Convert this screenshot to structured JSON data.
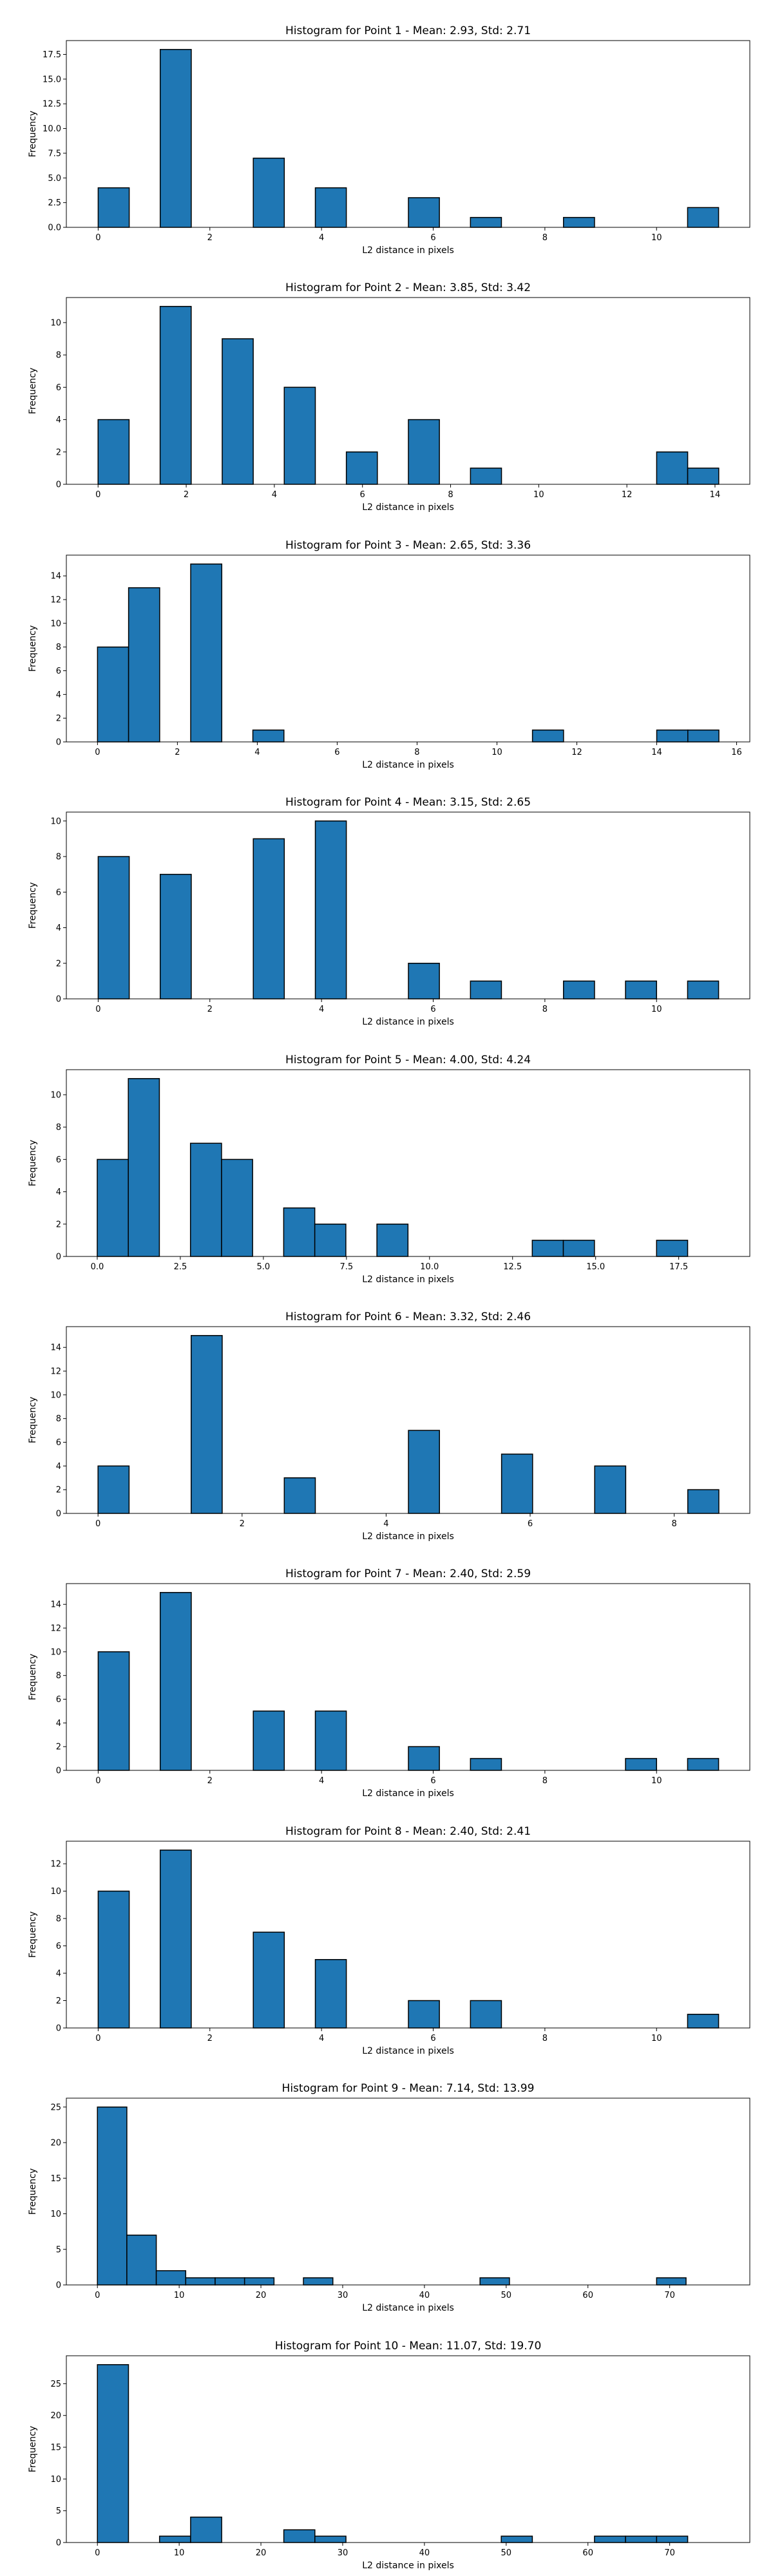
{
  "chart_data": [
    {
      "type": "bar",
      "title": "Histogram for Point 1 - Mean: 2.93, Std: 2.71",
      "xlabel": "L2 distance in pixels",
      "ylabel": "Frequency",
      "xlim": [
        -0.57,
        11.67
      ],
      "ylim": [
        0,
        18.9
      ],
      "xticks": [
        0,
        2,
        4,
        6,
        8,
        10
      ],
      "xtick_labels": [
        "0",
        "2",
        "4",
        "6",
        "8",
        "10"
      ],
      "yticks": [
        0,
        2.5,
        5,
        7.5,
        10,
        12.5,
        15,
        17.5
      ],
      "ytick_labels": [
        "0.0",
        "2.5",
        "5.0",
        "7.5",
        "10.0",
        "12.5",
        "15.0",
        "17.5"
      ],
      "bin_edges": [
        0,
        0.556,
        1.111,
        1.667,
        2.222,
        2.778,
        3.333,
        3.889,
        4.444,
        5.0,
        5.556,
        6.111,
        6.667,
        7.222,
        7.778,
        8.333,
        8.889,
        9.444,
        10.0,
        10.556,
        11.111
      ],
      "counts": [
        4,
        0,
        18,
        0,
        0,
        7,
        0,
        4,
        0,
        0,
        3,
        0,
        1,
        0,
        0,
        1,
        0,
        0,
        0,
        2
      ],
      "grid": false
    },
    {
      "type": "bar",
      "title": "Histogram for Point 2 - Mean: 3.85, Std: 3.42",
      "xlabel": "L2 distance in pixels",
      "ylabel": "Frequency",
      "xlim": [
        -0.72,
        14.79
      ],
      "ylim": [
        0,
        11.55
      ],
      "xticks": [
        0,
        2,
        4,
        6,
        8,
        10,
        12,
        14
      ],
      "xtick_labels": [
        "0",
        "2",
        "4",
        "6",
        "8",
        "10",
        "12",
        "14"
      ],
      "yticks": [
        0,
        2,
        4,
        6,
        8,
        10
      ],
      "ytick_labels": [
        "0",
        "2",
        "4",
        "6",
        "8",
        "10"
      ],
      "bin_edges": [
        0,
        0.704,
        1.408,
        2.113,
        2.817,
        3.521,
        4.225,
        4.93,
        5.634,
        6.338,
        7.042,
        7.746,
        8.451,
        9.155,
        9.859,
        10.563,
        11.268,
        11.972,
        12.676,
        13.38,
        14.085
      ],
      "counts": [
        4,
        0,
        11,
        0,
        9,
        0,
        6,
        0,
        2,
        0,
        4,
        0,
        1,
        0,
        0,
        0,
        0,
        0,
        2,
        1
      ],
      "grid": false
    },
    {
      "type": "bar",
      "title": "Histogram for Point 3 - Mean: 2.65, Std: 3.36",
      "xlabel": "L2 distance in pixels",
      "ylabel": "Frequency",
      "xlim": [
        -0.78,
        16.33
      ],
      "ylim": [
        0,
        15.75
      ],
      "xticks": [
        0,
        2,
        4,
        6,
        8,
        10,
        12,
        14,
        16
      ],
      "xtick_labels": [
        "0",
        "2",
        "4",
        "6",
        "8",
        "10",
        "12",
        "14",
        "16"
      ],
      "yticks": [
        0,
        2,
        4,
        6,
        8,
        10,
        12,
        14
      ],
      "ytick_labels": [
        "0",
        "2",
        "4",
        "6",
        "8",
        "10",
        "12",
        "14"
      ],
      "bin_edges": [
        0,
        0.778,
        1.556,
        2.333,
        3.111,
        3.889,
        4.667,
        5.444,
        6.222,
        7.0,
        7.778,
        8.556,
        9.333,
        10.111,
        10.889,
        11.667,
        12.444,
        13.222,
        14.0,
        14.778,
        15.556
      ],
      "counts": [
        8,
        13,
        0,
        15,
        0,
        1,
        0,
        0,
        0,
        0,
        0,
        0,
        0,
        0,
        1,
        0,
        0,
        0,
        1,
        1
      ],
      "grid": false
    },
    {
      "type": "bar",
      "title": "Histogram for Point 4 - Mean: 3.15, Std: 2.65",
      "xlabel": "L2 distance in pixels",
      "ylabel": "Frequency",
      "xlim": [
        -0.57,
        11.67
      ],
      "ylim": [
        0,
        10.5
      ],
      "xticks": [
        0,
        2,
        4,
        6,
        8,
        10
      ],
      "xtick_labels": [
        "0",
        "2",
        "4",
        "6",
        "8",
        "10"
      ],
      "yticks": [
        0,
        2,
        4,
        6,
        8,
        10
      ],
      "ytick_labels": [
        "0",
        "2",
        "4",
        "6",
        "8",
        "10"
      ],
      "bin_edges": [
        0,
        0.556,
        1.111,
        1.667,
        2.222,
        2.778,
        3.333,
        3.889,
        4.444,
        5.0,
        5.556,
        6.111,
        6.667,
        7.222,
        7.778,
        8.333,
        8.889,
        9.444,
        10.0,
        10.556,
        11.111
      ],
      "counts": [
        8,
        0,
        7,
        0,
        0,
        9,
        0,
        10,
        0,
        0,
        2,
        0,
        1,
        0,
        0,
        1,
        0,
        1,
        0,
        1
      ],
      "grid": false
    },
    {
      "type": "bar",
      "title": "Histogram for Point 5 - Mean: 4.00, Std: 4.24",
      "xlabel": "L2 distance in pixels",
      "ylabel": "Frequency",
      "xlim": [
        -0.93,
        19.64
      ],
      "ylim": [
        0,
        11.55
      ],
      "xticks": [
        0,
        2.5,
        5,
        7.5,
        10,
        12.5,
        15,
        17.5
      ],
      "xtick_labels": [
        "0.0",
        "2.5",
        "5.0",
        "7.5",
        "10.0",
        "12.5",
        "15.0",
        "17.5"
      ],
      "yticks": [
        0,
        2,
        4,
        6,
        8,
        10
      ],
      "ytick_labels": [
        "0",
        "2",
        "4",
        "6",
        "8",
        "10"
      ],
      "bin_edges": [
        0,
        0.935,
        1.87,
        2.806,
        3.741,
        4.676,
        5.611,
        6.547,
        7.482,
        8.417,
        9.352,
        10.287,
        11.223,
        12.158,
        13.093,
        14.028,
        14.964,
        15.899,
        16.834,
        17.769,
        18.705
      ],
      "counts": [
        6,
        11,
        0,
        7,
        6,
        0,
        3,
        2,
        0,
        2,
        0,
        0,
        0,
        0,
        1,
        1,
        0,
        0,
        1,
        0
      ],
      "grid": false
    },
    {
      "type": "bar",
      "title": "Histogram for Point 6 - Mean: 3.32, Std: 2.46",
      "xlabel": "L2 distance in pixels",
      "ylabel": "Frequency",
      "xlim": [
        -0.44,
        9.05
      ],
      "ylim": [
        0,
        15.75
      ],
      "xticks": [
        0,
        2,
        4,
        6,
        8
      ],
      "xtick_labels": [
        "0",
        "2",
        "4",
        "6",
        "8"
      ],
      "yticks": [
        0,
        2,
        4,
        6,
        8,
        10,
        12,
        14
      ],
      "ytick_labels": [
        "0",
        "2",
        "4",
        "6",
        "8",
        "10",
        "12",
        "14"
      ],
      "bin_edges": [
        0,
        0.431,
        0.862,
        1.293,
        1.724,
        2.155,
        2.586,
        3.017,
        3.448,
        3.879,
        4.31,
        4.741,
        5.172,
        5.603,
        6.034,
        6.465,
        6.896,
        7.327,
        7.758,
        8.189,
        8.62
      ],
      "counts": [
        4,
        0,
        0,
        15,
        0,
        0,
        3,
        0,
        0,
        0,
        7,
        0,
        0,
        5,
        0,
        0,
        4,
        0,
        0,
        2
      ],
      "grid": false
    },
    {
      "type": "bar",
      "title": "Histogram for Point 7 - Mean: 2.40, Std: 2.59",
      "xlabel": "L2 distance in pixels",
      "ylabel": "Frequency",
      "xlim": [
        -0.57,
        11.67
      ],
      "ylim": [
        0,
        15.75
      ],
      "xticks": [
        0,
        2,
        4,
        6,
        8,
        10
      ],
      "xtick_labels": [
        "0",
        "2",
        "4",
        "6",
        "8",
        "10"
      ],
      "yticks": [
        0,
        2,
        4,
        6,
        8,
        10,
        12,
        14
      ],
      "ytick_labels": [
        "0",
        "2",
        "4",
        "6",
        "8",
        "10",
        "12",
        "14"
      ],
      "bin_edges": [
        0,
        0.556,
        1.111,
        1.667,
        2.222,
        2.778,
        3.333,
        3.889,
        4.444,
        5.0,
        5.556,
        6.111,
        6.667,
        7.222,
        7.778,
        8.333,
        8.889,
        9.444,
        10.0,
        10.556,
        11.111
      ],
      "counts": [
        10,
        0,
        15,
        0,
        0,
        5,
        0,
        5,
        0,
        0,
        2,
        0,
        1,
        0,
        0,
        0,
        0,
        1,
        0,
        1
      ],
      "grid": false
    },
    {
      "type": "bar",
      "title": "Histogram for Point 8 - Mean: 2.40, Std: 2.41",
      "xlabel": "L2 distance in pixels",
      "ylabel": "Frequency",
      "xlim": [
        -0.57,
        11.67
      ],
      "ylim": [
        0,
        13.65
      ],
      "xticks": [
        0,
        2,
        4,
        6,
        8,
        10
      ],
      "xtick_labels": [
        "0",
        "2",
        "4",
        "6",
        "8",
        "10"
      ],
      "yticks": [
        0,
        2,
        4,
        6,
        8,
        10,
        12
      ],
      "ytick_labels": [
        "0",
        "2",
        "4",
        "6",
        "8",
        "10",
        "12"
      ],
      "bin_edges": [
        0,
        0.556,
        1.111,
        1.667,
        2.222,
        2.778,
        3.333,
        3.889,
        4.444,
        5.0,
        5.556,
        6.111,
        6.667,
        7.222,
        7.778,
        8.333,
        8.889,
        9.444,
        10.0,
        10.556,
        11.111
      ],
      "counts": [
        10,
        0,
        13,
        0,
        0,
        7,
        0,
        5,
        0,
        0,
        2,
        0,
        2,
        0,
        0,
        0,
        0,
        0,
        0,
        1
      ],
      "grid": false
    },
    {
      "type": "bar",
      "title": "Histogram for Point 9 - Mean: 7.14, Std: 13.99",
      "xlabel": "L2 distance in pixels",
      "ylabel": "Frequency",
      "xlim": [
        -3.8,
        79.8
      ],
      "ylim": [
        0,
        26.25
      ],
      "xticks": [
        0,
        10,
        20,
        30,
        40,
        50,
        60,
        70
      ],
      "xtick_labels": [
        "0",
        "10",
        "20",
        "30",
        "40",
        "50",
        "60",
        "70"
      ],
      "yticks": [
        0,
        5,
        10,
        15,
        20,
        25
      ],
      "ytick_labels": [
        "0",
        "5",
        "10",
        "15",
        "20",
        "25"
      ],
      "bin_edges": [
        0,
        3.6,
        7.2,
        10.8,
        14.4,
        18.0,
        21.6,
        25.2,
        28.8,
        32.4,
        36.0,
        39.6,
        43.2,
        46.8,
        50.4,
        54.0,
        57.6,
        61.2,
        64.8,
        68.4,
        72.0
      ],
      "counts": [
        25,
        7,
        2,
        1,
        1,
        1,
        0,
        1,
        0,
        0,
        0,
        0,
        0,
        1,
        0,
        0,
        0,
        0,
        0,
        1
      ],
      "grid": false
    },
    {
      "type": "bar",
      "title": "Histogram for Point 10 - Mean: 11.07, Std: 19.70",
      "xlabel": "L2 distance in pixels",
      "ylabel": "Frequency",
      "xlim": [
        -3.8,
        79.8
      ],
      "ylim": [
        0,
        29.4
      ],
      "xticks": [
        0,
        10,
        20,
        30,
        40,
        50,
        60,
        70
      ],
      "xtick_labels": [
        "0",
        "10",
        "20",
        "30",
        "40",
        "50",
        "60",
        "70"
      ],
      "yticks": [
        0,
        5,
        10,
        15,
        20,
        25
      ],
      "ytick_labels": [
        "0",
        "5",
        "10",
        "15",
        "20",
        "25"
      ],
      "bin_edges": [
        0,
        3.8,
        7.6,
        11.4,
        15.2,
        19.0,
        22.8,
        26.6,
        30.4,
        34.2,
        38.0,
        41.8,
        45.6,
        49.4,
        53.2,
        57.0,
        60.8,
        64.6,
        68.4,
        72.2,
        76.0
      ],
      "counts": [
        28,
        0,
        1,
        4,
        0,
        0,
        2,
        1,
        0,
        0,
        0,
        0,
        0,
        1,
        0,
        0,
        1,
        1,
        1,
        0
      ],
      "grid": false
    }
  ],
  "colors": {
    "bar_fill": "#1f77b4",
    "bar_edge": "#000000",
    "axes": "#000000",
    "background": "#ffffff"
  }
}
